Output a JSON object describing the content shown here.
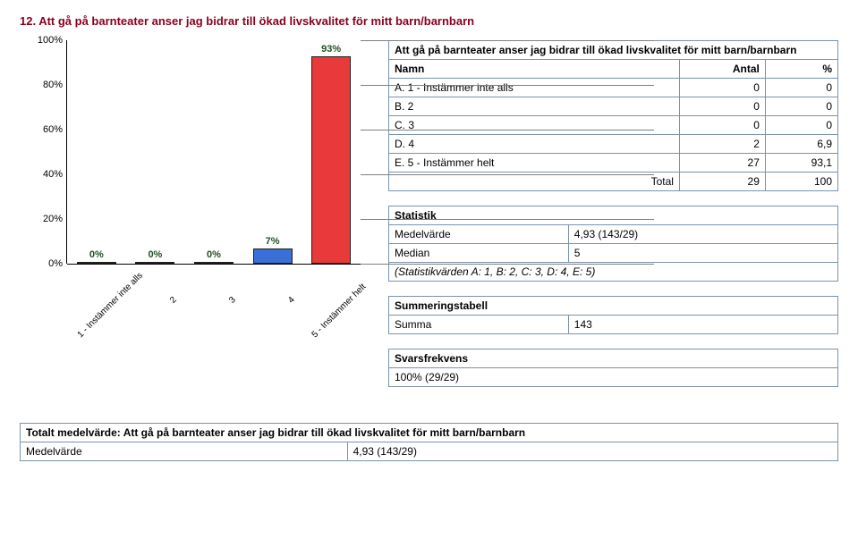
{
  "page": {
    "title": "12. Att gå på barnteater anser jag bidrar till ökad livskvalitet för mitt barn/barnbarn"
  },
  "chart": {
    "type": "bar",
    "ylim": [
      0,
      100
    ],
    "ytick_step": 20,
    "yticks": [
      "100%",
      "80%",
      "60%",
      "40%",
      "20%",
      "0%"
    ],
    "categories": [
      "1 - Instämmer inte alls",
      "2",
      "3",
      "4",
      "5 - Instämmer helt"
    ],
    "values": [
      0,
      0,
      0,
      7,
      93
    ],
    "value_labels": [
      "0%",
      "0%",
      "0%",
      "7%",
      "93%"
    ],
    "bar_colors": [
      "#c0c0c0",
      "#808080",
      "#3f953f",
      "#3a6fd8",
      "#e83a3a"
    ],
    "grid_color": "#808080",
    "background": "#ffffff"
  },
  "data_table": {
    "caption": "Att gå på barnteater anser jag bidrar till ökad livskvalitet för mitt barn/barnbarn",
    "head": [
      "Namn",
      "Antal",
      "%"
    ],
    "rows": [
      {
        "name": "A. 1 - Instämmer inte alls",
        "count": "0",
        "pct": "0"
      },
      {
        "name": "B. 2",
        "count": "0",
        "pct": "0"
      },
      {
        "name": "C. 3",
        "count": "0",
        "pct": "0"
      },
      {
        "name": "D. 4",
        "count": "2",
        "pct": "6,9"
      },
      {
        "name": "E. 5 - Instämmer helt",
        "count": "27",
        "pct": "93,1"
      }
    ],
    "total_label": "Total",
    "total_count": "29",
    "total_pct": "100"
  },
  "stats": {
    "title": "Statistik",
    "rows": [
      {
        "label": "Medelvärde",
        "value": "4,93 (143/29)"
      },
      {
        "label": "Median",
        "value": "5"
      }
    ],
    "note": "(Statistikvärden A: 1, B: 2, C: 3, D: 4, E: 5)"
  },
  "summary": {
    "title": "Summeringstabell",
    "label": "Summa",
    "value": "143"
  },
  "freq": {
    "title": "Svarsfrekvens",
    "value": "100% (29/29)"
  },
  "footer": {
    "title": "Totalt medelvärde: Att gå på barnteater anser jag bidrar till ökad livskvalitet för mitt barn/barnbarn",
    "label": "Medelvärde",
    "value": "4,93 (143/29)"
  }
}
